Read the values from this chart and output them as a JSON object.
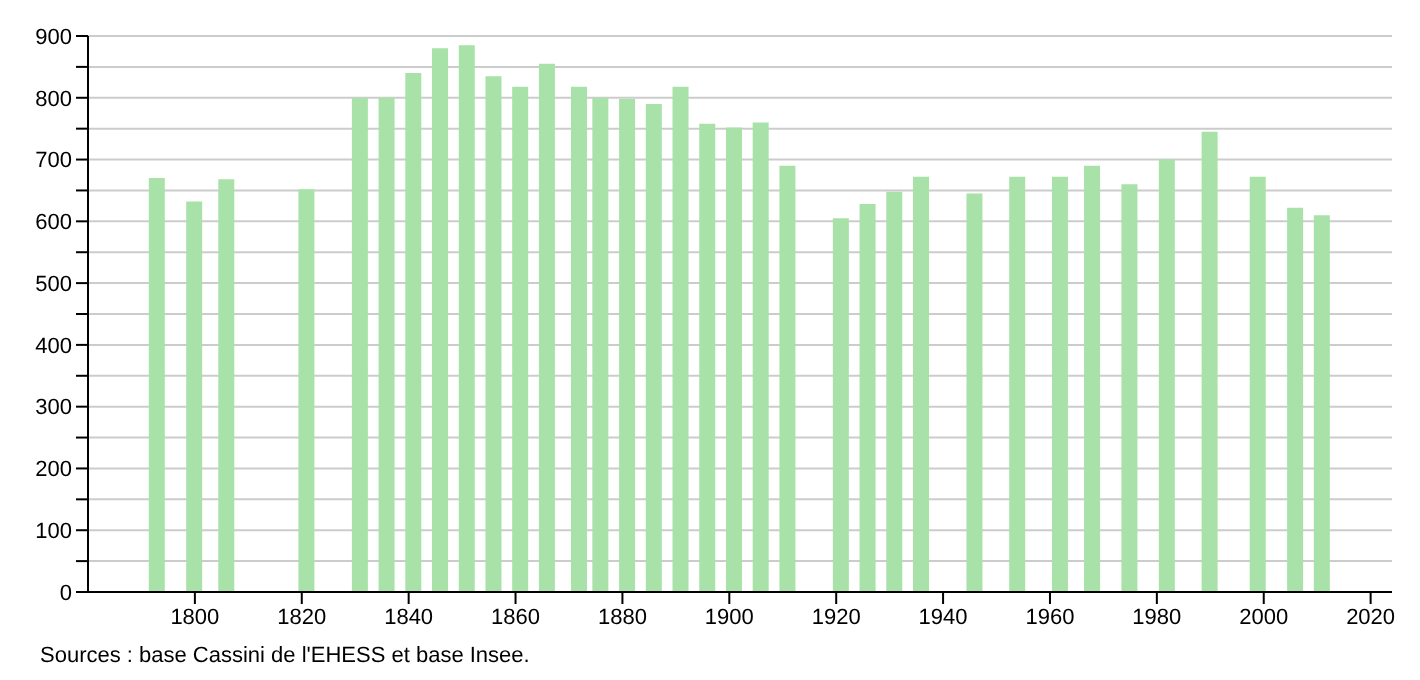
{
  "chart_data": {
    "type": "bar",
    "x": [
      1793,
      1800,
      1806,
      1821,
      1831,
      1836,
      1841,
      1846,
      1851,
      1856,
      1861,
      1866,
      1872,
      1876,
      1881,
      1886,
      1891,
      1896,
      1901,
      1906,
      1911,
      1921,
      1926,
      1931,
      1936,
      1946,
      1954,
      1962,
      1968,
      1975,
      1982,
      1990,
      1999,
      2006,
      2011
    ],
    "values": [
      670,
      632,
      668,
      652,
      800,
      800,
      840,
      880,
      885,
      835,
      818,
      855,
      818,
      800,
      798,
      790,
      818,
      758,
      752,
      760,
      690,
      605,
      628,
      648,
      672,
      645,
      672,
      672,
      690,
      660,
      700,
      745,
      672,
      622,
      610
    ],
    "color": "#a8e2a8",
    "xlim": [
      1780,
      2024
    ],
    "xticks": [
      1800,
      1820,
      1840,
      1860,
      1880,
      1900,
      1920,
      1940,
      1960,
      1980,
      2000,
      2020
    ],
    "ylim": [
      0,
      900
    ],
    "yticks": [
      0,
      {
        "value": 50,
        "label": null
      },
      100,
      {
        "value": 150,
        "label": null
      },
      200,
      {
        "value": 250,
        "label": null
      },
      300,
      {
        "value": 350,
        "label": null
      },
      400,
      {
        "value": 450,
        "label": null
      },
      500,
      {
        "value": 550,
        "label": null
      },
      600,
      {
        "value": 650,
        "label": null
      },
      700,
      {
        "value": 750,
        "label": null
      },
      800,
      {
        "value": 850,
        "label": null
      },
      900
    ],
    "grid": "y",
    "annotations": [
      "Sources : base Cassini de l'EHESS et base Insee."
    ]
  }
}
